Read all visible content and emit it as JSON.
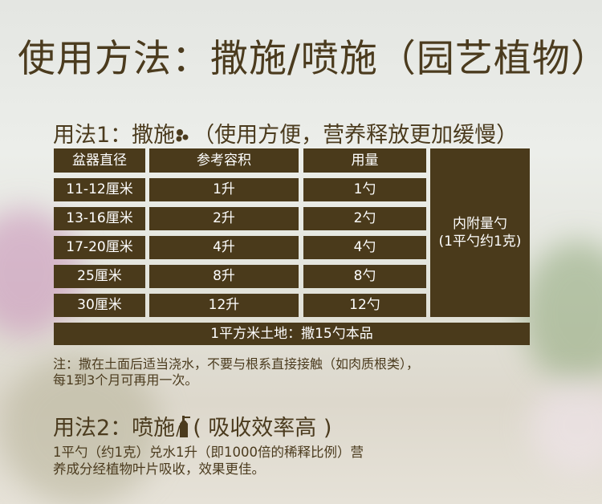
{
  "title": "使用方法：撒施/喷施（园艺植物）",
  "method1": {
    "label": "用法1：撒施",
    "icon": "granules-icon",
    "desc": "（使用方便，营养释放更加缓慢）"
  },
  "table": {
    "headers": [
      "盆器直径",
      "参考容积",
      "用量"
    ],
    "rows": [
      [
        "11-12厘米",
        "1升",
        "1勺"
      ],
      [
        "13-16厘米",
        "2升",
        "2勺"
      ],
      [
        "17-20厘米",
        "4升",
        "4勺"
      ],
      [
        "25厘米",
        "8升",
        "8勺"
      ],
      [
        "30厘米",
        "12升",
        "12勺"
      ]
    ],
    "side_note": [
      "内附量勺",
      "(1平勺约1克)"
    ],
    "footer": "1平方米土地：撒15勺本品"
  },
  "note": [
    "注：撒在土面后适当浇水，不要与根系直接接触（如肉质根类），",
    "每1到3个月可再用一次。"
  ],
  "method2": {
    "label": "用法2：喷施",
    "icon": "spray-bottle-icon",
    "desc": "( 吸收效率高 )",
    "text": [
      "1平勺（约1克）兑水1升（即1000倍的稀释比例）营",
      "养成分经植物叶片吸收，效果更佳。"
    ]
  },
  "colors": {
    "brown": "#4a3a1b",
    "text": "#4b3b1e"
  }
}
